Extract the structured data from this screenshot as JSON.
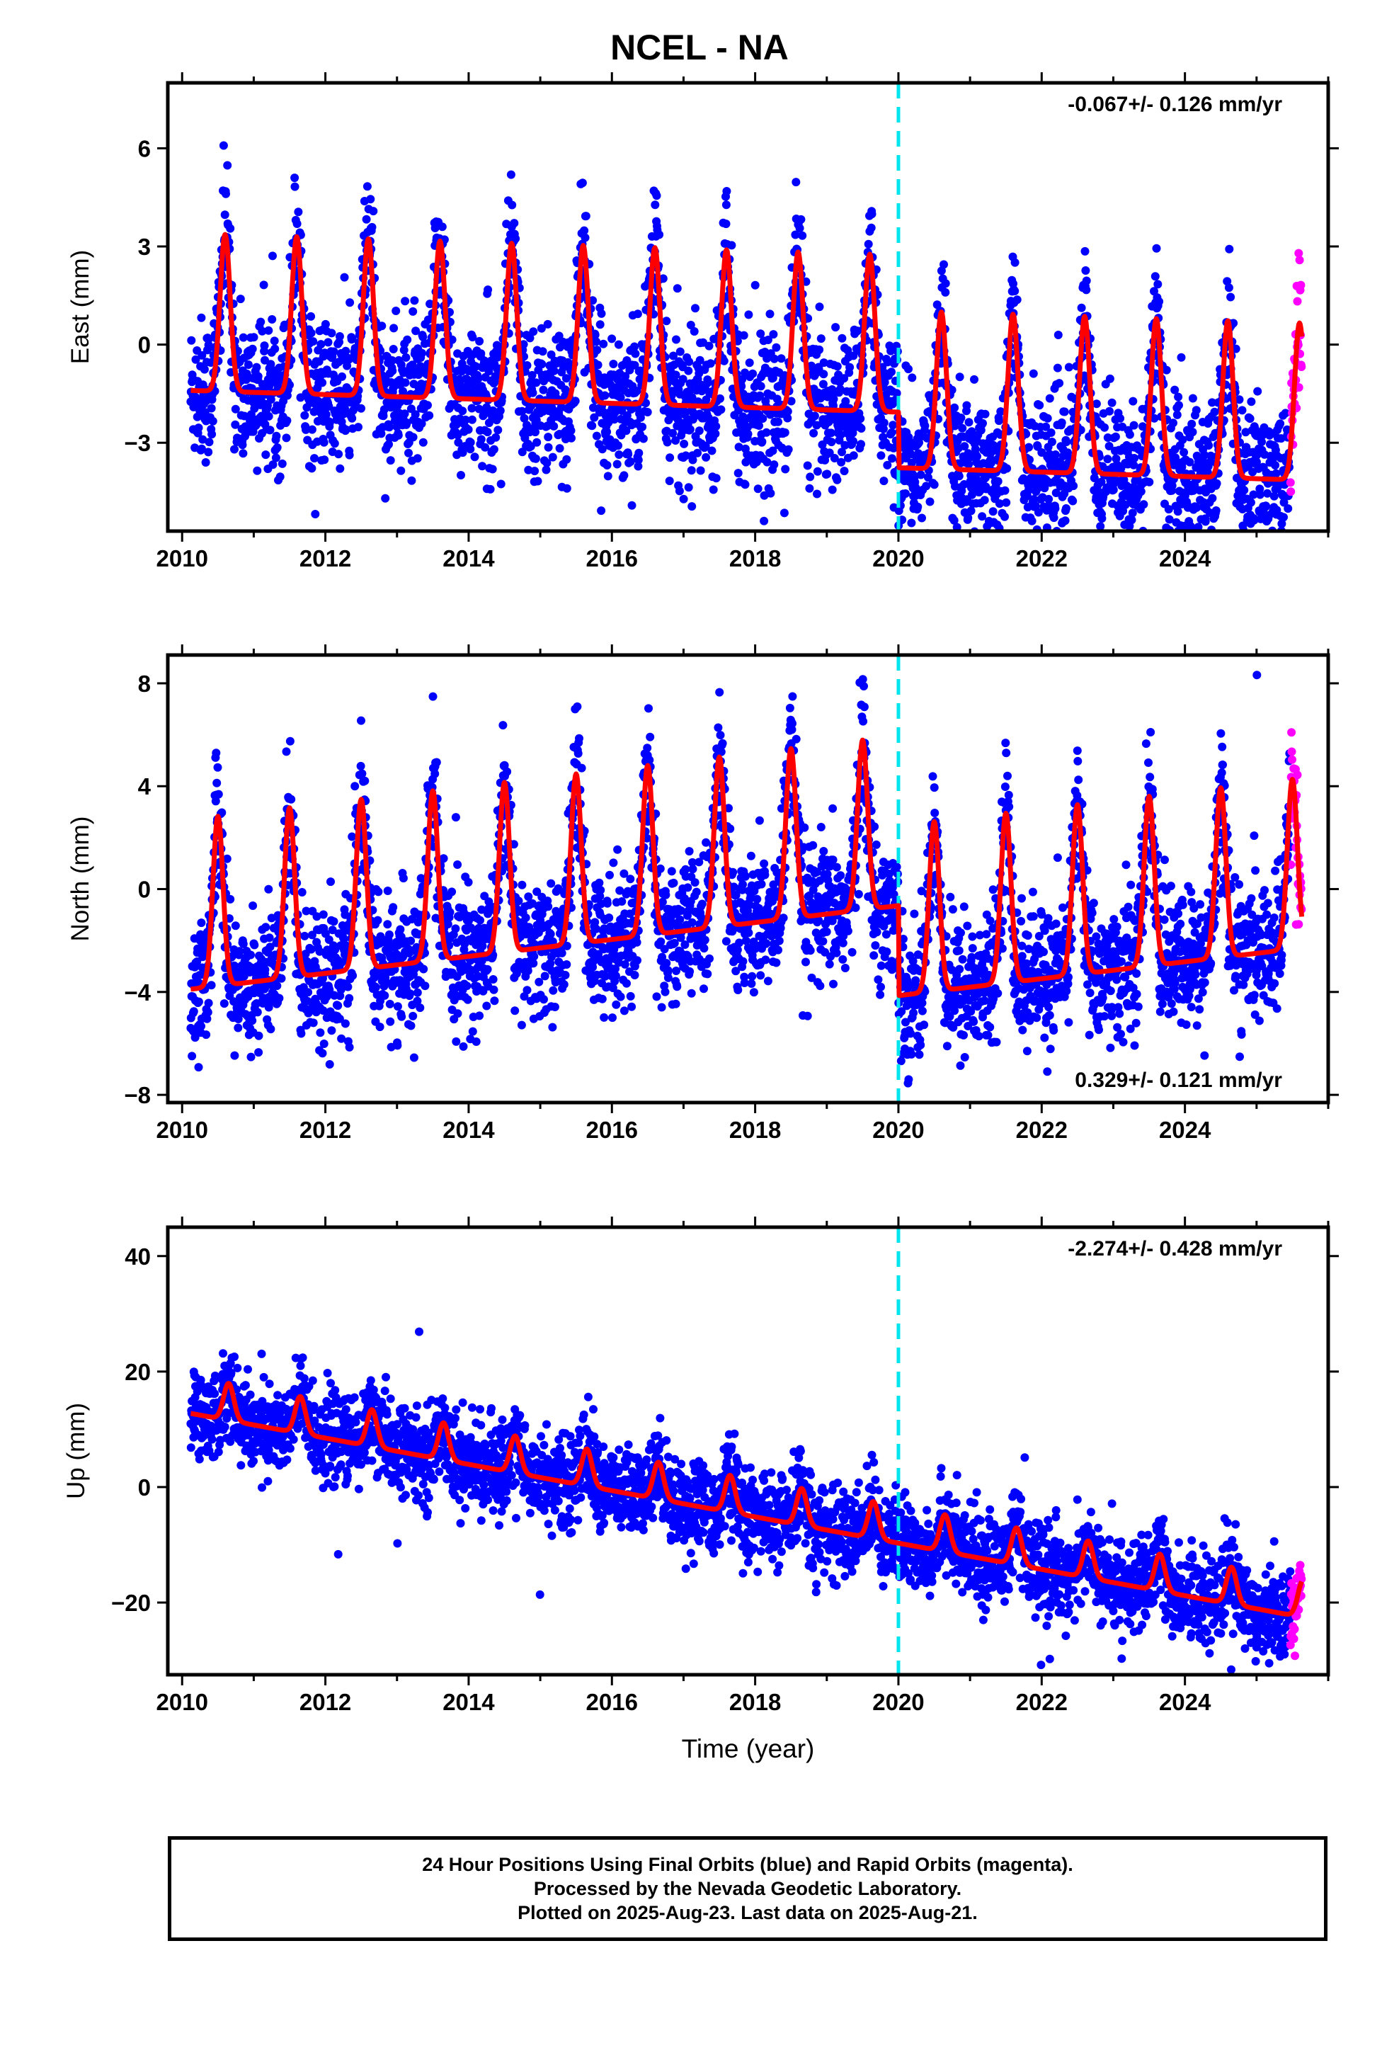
{
  "title": "NCEL - NA",
  "colors": {
    "final_orbits": "#0000ff",
    "rapid_orbits": "#ff00ff",
    "model": "#ff0000",
    "break_line": "#00e5ee"
  },
  "chart_data": [
    {
      "type": "scatter",
      "ylabel": "East (mm)",
      "xlabel": "",
      "xlim": [
        2009.8,
        2026.0
      ],
      "ylim": [
        -5.7,
        8.0
      ],
      "yticks": [
        -3,
        0,
        3,
        6
      ],
      "xticks": [
        2010,
        2012,
        2014,
        2016,
        2018,
        2020,
        2022,
        2024
      ],
      "rate_label": "-0.067+/- 0.126 mm/yr",
      "rate_label_position": "top-right",
      "break_epoch": 2020.0,
      "model": {
        "amplitude": 2.4,
        "peak_phase": 0.6,
        "offset": 1.0,
        "trend": -0.067,
        "post_break_offset": -1.7
      },
      "scatter_sigma": 1.1,
      "data_start": 2010.12,
      "data_end": 2025.63,
      "rapid_start": 2025.47,
      "series": [
        {
          "name": "Final Orbits",
          "color": "#0000ff"
        },
        {
          "name": "Rapid Orbits",
          "color": "#ff00ff"
        }
      ]
    },
    {
      "type": "scatter",
      "ylabel": "North (mm)",
      "xlabel": "",
      "xlim": [
        2009.8,
        2026.0
      ],
      "ylim": [
        -8.3,
        9.1
      ],
      "yticks": [
        -8,
        -4,
        0,
        4,
        8
      ],
      "xticks": [
        2010,
        2012,
        2014,
        2016,
        2018,
        2020,
        2022,
        2024
      ],
      "rate_label": "0.329+/- 0.121 mm/yr",
      "rate_label_position": "bottom-right",
      "break_epoch": 2020.0,
      "model": {
        "amplitude": 3.3,
        "peak_phase": 0.5,
        "offset": -0.6,
        "trend": 0.329,
        "post_break_offset": -3.5
      },
      "scatter_sigma": 1.3,
      "data_start": 2010.12,
      "data_end": 2025.63,
      "rapid_start": 2025.47,
      "series": [
        {
          "name": "Final Orbits",
          "color": "#0000ff"
        },
        {
          "name": "Rapid Orbits",
          "color": "#ff00ff"
        }
      ]
    },
    {
      "type": "scatter",
      "ylabel": "Up (mm)",
      "xlabel": "Time (year)",
      "xlim": [
        2009.8,
        2026.0
      ],
      "ylim": [
        -32.5,
        45.0
      ],
      "yticks": [
        -20,
        0,
        20,
        40
      ],
      "xticks": [
        2010,
        2012,
        2014,
        2016,
        2018,
        2020,
        2022,
        2024
      ],
      "rate_label": "-2.274+/- 0.428 mm/yr",
      "rate_label_position": "top-right",
      "break_epoch": 2020.0,
      "model": {
        "amplitude": 3.2,
        "peak_phase": 0.65,
        "offset": 16.0,
        "trend": -2.274,
        "post_break_offset": 0
      },
      "scatter_sigma": 3.8,
      "data_start": 2010.12,
      "data_end": 2025.63,
      "rapid_start": 2025.47,
      "series": [
        {
          "name": "Final Orbits",
          "color": "#0000ff"
        },
        {
          "name": "Rapid Orbits",
          "color": "#ff00ff"
        }
      ]
    }
  ],
  "footer": {
    "line1": "24 Hour Positions Using Final Orbits (blue) and Rapid Orbits (magenta).",
    "line2": "Processed by the Nevada Geodetic Laboratory.",
    "line3": "Plotted on 2025-Aug-23. Last data on 2025-Aug-21."
  }
}
